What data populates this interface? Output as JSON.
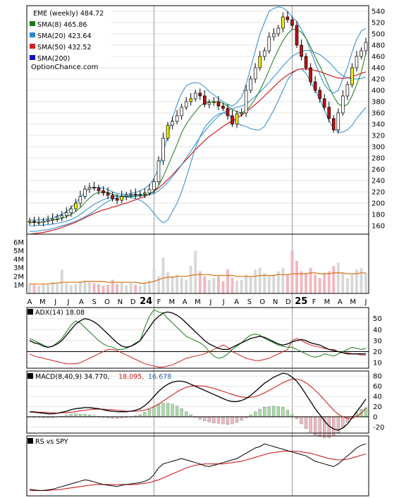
{
  "chart_data": {
    "type": "stock-chart",
    "price_panel": {
      "legend": [
        {
          "label": "EME (weekly) 484.72",
          "color": "#ffffff",
          "swatch": false
        },
        {
          "label": "SMA(8) 465.86",
          "color": "#1a7a1a",
          "swatch": true
        },
        {
          "label": "SMA(20) 423.64",
          "color": "#2a8ad0",
          "swatch": true
        },
        {
          "label": "SMA(50) 432.52",
          "color": "#d02020",
          "swatch": true
        },
        {
          "label": "SMA(200)",
          "color": "#1010c0",
          "swatch": true
        }
      ],
      "watermark": "OptionChance.com",
      "y_ticks": [
        160,
        180,
        200,
        220,
        240,
        260,
        280,
        300,
        320,
        340,
        360,
        380,
        400,
        420,
        440,
        460,
        480,
        500,
        520,
        540
      ],
      "ylim": [
        145,
        550
      ],
      "close": [
        168,
        166,
        166,
        168,
        170,
        172,
        175,
        178,
        183,
        190,
        200,
        212,
        225,
        228,
        227,
        222,
        218,
        214,
        208,
        205,
        212,
        214,
        216,
        215,
        216,
        218,
        224,
        238,
        275,
        315,
        338,
        345,
        355,
        370,
        380,
        385,
        395,
        390,
        375,
        378,
        380,
        372,
        368,
        355,
        340,
        358,
        360,
        400,
        420,
        440,
        460,
        470,
        495,
        500,
        510,
        530,
        525,
        515,
        480,
        460,
        440,
        415,
        400,
        385,
        370,
        350,
        330,
        360,
        390,
        410,
        440,
        460,
        470,
        485
      ],
      "sma8": [
        165,
        166,
        166,
        167,
        168,
        170,
        171,
        173,
        176,
        180,
        185,
        192,
        201,
        209,
        216,
        219,
        220,
        219,
        216,
        213,
        212,
        212,
        212,
        212,
        213,
        214,
        216,
        220,
        231,
        247,
        266,
        285,
        304,
        325,
        340,
        352,
        362,
        372,
        378,
        380,
        380,
        380,
        377,
        372,
        366,
        362,
        360,
        364,
        373,
        385,
        400,
        417,
        436,
        455,
        472,
        488,
        500,
        508,
        508,
        503,
        492,
        477,
        459,
        443,
        425,
        406,
        389,
        376,
        371,
        375,
        390,
        410,
        432,
        465.86
      ],
      "sma20": [
        160,
        160,
        161,
        161,
        162,
        163,
        164,
        166,
        168,
        171,
        175,
        180,
        186,
        192,
        198,
        202,
        206,
        209,
        211,
        212,
        213,
        213,
        213,
        214,
        214,
        215,
        215,
        217,
        222,
        229,
        237,
        247,
        257,
        268,
        280,
        292,
        305,
        317,
        327,
        337,
        346,
        354,
        360,
        364,
        367,
        370,
        372,
        376,
        382,
        389,
        397,
        405,
        414,
        424,
        433,
        443,
        452,
        460,
        465,
        469,
        471,
        470,
        467,
        463,
        457,
        450,
        441,
        432,
        426,
        422,
        420,
        420,
        421,
        423.64
      ],
      "sma50": [
        145,
        146,
        147,
        148,
        150,
        152,
        154,
        157,
        160,
        163,
        166,
        170,
        174,
        178,
        182,
        185,
        188,
        190,
        193,
        195,
        198,
        200,
        203,
        206,
        209,
        212,
        216,
        221,
        227,
        234,
        242,
        250,
        259,
        268,
        277,
        286,
        295,
        303,
        311,
        318,
        324,
        330,
        336,
        341,
        346,
        351,
        356,
        362,
        368,
        375,
        382,
        390,
        398,
        406,
        414,
        421,
        427,
        432,
        436,
        438,
        438,
        437,
        435,
        433,
        430,
        427,
        424,
        422,
        421,
        422,
        424,
        427,
        430,
        432.52
      ],
      "bb_upper": [
        170,
        170,
        170,
        171,
        172,
        174,
        177,
        180,
        185,
        192,
        200,
        210,
        220,
        226,
        228,
        228,
        226,
        224,
        220,
        217,
        216,
        216,
        217,
        219,
        222,
        226,
        232,
        244,
        262,
        290,
        320,
        350,
        375,
        395,
        408,
        412,
        414,
        412,
        406,
        398,
        392,
        385,
        380,
        375,
        372,
        378,
        388,
        410,
        440,
        470,
        500,
        520,
        540,
        545,
        548,
        546,
        540,
        530,
        522,
        508,
        492,
        470,
        448,
        428,
        410,
        400,
        395,
        400,
        420,
        440,
        468,
        490,
        505,
        510
      ],
      "bb_lower": [
        150,
        150,
        151,
        152,
        153,
        155,
        157,
        160,
        162,
        165,
        168,
        172,
        176,
        180,
        186,
        192,
        198,
        203,
        207,
        209,
        211,
        211,
        210,
        208,
        205,
        200,
        192,
        182,
        172,
        165,
        170,
        185,
        200,
        220,
        245,
        272,
        298,
        318,
        334,
        344,
        352,
        358,
        360,
        358,
        350,
        342,
        338,
        336,
        332,
        330,
        330,
        336,
        350,
        365,
        382,
        400,
        418,
        430,
        436,
        438,
        430,
        416,
        400,
        384,
        365,
        346,
        332,
        326,
        326,
        330,
        338,
        350,
        360,
        370
      ],
      "candles_note": "weekly OHLC candles"
    },
    "volume_panel": {
      "y_ticks": [
        "1M",
        "2M",
        "3M",
        "4M",
        "5M",
        "6M"
      ],
      "values": [
        1.2,
        1.0,
        0.9,
        1.1,
        1.0,
        1.3,
        1.1,
        2.8,
        1.2,
        1.0,
        1.1,
        1.4,
        1.5,
        1.3,
        1.2,
        1.1,
        0.9,
        1.0,
        1.6,
        1.1,
        1.3,
        1.0,
        1.2,
        1.0,
        0.9,
        1.2,
        1.5,
        3.0,
        2.0,
        4.2,
        2.5,
        2.0,
        2.2,
        1.8,
        1.6,
        3.2,
        5.0,
        2.6,
        2.0,
        1.6,
        1.8,
        2.0,
        1.4,
        2.8,
        1.8,
        1.5,
        1.6,
        2.2,
        2.0,
        2.8,
        3.0,
        2.4,
        2.0,
        2.2,
        2.6,
        3.0,
        2.2,
        5.0,
        3.8,
        2.6,
        2.4,
        3.0,
        2.2,
        1.8,
        2.4,
        2.6,
        3.2,
        3.6,
        2.4,
        1.8,
        2.2,
        2.8,
        3.0,
        2.4
      ],
      "avg": [
        1.1,
        1.1,
        1.1,
        1.1,
        1.1,
        1.2,
        1.2,
        1.3,
        1.3,
        1.3,
        1.3,
        1.3,
        1.4,
        1.4,
        1.4,
        1.4,
        1.4,
        1.3,
        1.3,
        1.3,
        1.3,
        1.3,
        1.3,
        1.3,
        1.2,
        1.2,
        1.3,
        1.4,
        1.6,
        1.8,
        1.9,
        1.9,
        2.0,
        2.0,
        2.0,
        2.1,
        2.2,
        2.2,
        2.2,
        2.2,
        2.1,
        2.1,
        2.1,
        2.1,
        2.1,
        2.0,
        2.0,
        2.0,
        2.0,
        2.0,
        2.1,
        2.1,
        2.1,
        2.1,
        2.2,
        2.2,
        2.2,
        2.3,
        2.3,
        2.3,
        2.3,
        2.4,
        2.4,
        2.3,
        2.3,
        2.3,
        2.4,
        2.4,
        2.4,
        2.3,
        2.3,
        2.3,
        2.4,
        2.4
      ]
    },
    "x_axis": {
      "labels": [
        "A",
        "M",
        "J",
        "J",
        "A",
        "S",
        "O",
        "N",
        "D",
        "24",
        "F",
        "M",
        "A",
        "M",
        "J",
        "J",
        "A",
        "S",
        "O",
        "N",
        "D",
        "25",
        "F",
        "M",
        "A",
        "M",
        "J"
      ]
    },
    "adx_panel": {
      "title": "ADX(14) 18.08",
      "y_ticks": [
        10,
        20,
        30,
        40,
        50
      ],
      "ylim": [
        5,
        60
      ],
      "adx": [
        30,
        28,
        27,
        25,
        24,
        25,
        27,
        30,
        35,
        40,
        45,
        48,
        50,
        49,
        47,
        44,
        40,
        36,
        32,
        28,
        25,
        24,
        25,
        27,
        30,
        36,
        42,
        48,
        52,
        55,
        56,
        55,
        53,
        50,
        46,
        42,
        38,
        34,
        30,
        27,
        25,
        23,
        22,
        22,
        24,
        26,
        28,
        30,
        32,
        33,
        34,
        33,
        31,
        29,
        27,
        26,
        27,
        29,
        30,
        31,
        30,
        28,
        27,
        26,
        24,
        22,
        21,
        20,
        19,
        18,
        18,
        18,
        18,
        18.08
      ],
      "plus_di": [
        32,
        30,
        28,
        26,
        24,
        25,
        28,
        32,
        38,
        44,
        48,
        46,
        42,
        38,
        34,
        30,
        27,
        25,
        24,
        22,
        22,
        23,
        25,
        28,
        30,
        42,
        52,
        58,
        56,
        55,
        50,
        46,
        42,
        38,
        34,
        32,
        30,
        28,
        25,
        20,
        16,
        14,
        15,
        18,
        22,
        25,
        28,
        32,
        35,
        36,
        35,
        32,
        30,
        28,
        26,
        25,
        24,
        24,
        22,
        20,
        18,
        16,
        15,
        16,
        18,
        17,
        16,
        18,
        20,
        22,
        24,
        23,
        22,
        23
      ],
      "minus_di": [
        18,
        16,
        15,
        14,
        13,
        12,
        11,
        10,
        9,
        9,
        9,
        10,
        12,
        14,
        16,
        18,
        20,
        22,
        22,
        21,
        19,
        17,
        15,
        13,
        11,
        9,
        8,
        7,
        6,
        6,
        7,
        8,
        10,
        12,
        14,
        15,
        16,
        17,
        18,
        20,
        22,
        24,
        26,
        24,
        20,
        18,
        16,
        14,
        13,
        12,
        12,
        13,
        14,
        16,
        18,
        20,
        22,
        30,
        32,
        30,
        28,
        26,
        25,
        24,
        23,
        22,
        22,
        20,
        19,
        19,
        18,
        18,
        17,
        17
      ]
    },
    "macd_panel": {
      "title": "MACD(8,40,9) 34.770,",
      "macd_value": "18.095,",
      "signal_value": "16.678",
      "y_ticks": [
        -20,
        0,
        20,
        40,
        60,
        80
      ],
      "ylim": [
        -32,
        90
      ],
      "macd": [
        10,
        9,
        8,
        7,
        6,
        6,
        7,
        9,
        11,
        14,
        16,
        17,
        18,
        18,
        17,
        16,
        14,
        12,
        11,
        10,
        10,
        10,
        11,
        13,
        16,
        22,
        30,
        40,
        50,
        58,
        64,
        68,
        70,
        70,
        68,
        64,
        60,
        56,
        52,
        48,
        44,
        40,
        36,
        32,
        30,
        30,
        32,
        36,
        42,
        50,
        58,
        66,
        72,
        78,
        82,
        86,
        84,
        78,
        70,
        58,
        44,
        30,
        16,
        4,
        -8,
        -18,
        -24,
        -26,
        -22,
        -14,
        -2,
        10,
        22,
        34.77
      ],
      "signal": [
        10,
        10,
        9,
        9,
        8,
        8,
        7,
        8,
        8,
        9,
        10,
        12,
        13,
        14,
        15,
        15,
        15,
        14,
        14,
        13,
        12,
        11,
        11,
        11,
        12,
        13,
        16,
        20,
        25,
        31,
        37,
        43,
        49,
        54,
        58,
        60,
        61,
        61,
        60,
        58,
        56,
        53,
        50,
        47,
        44,
        41,
        39,
        38,
        38,
        40,
        43,
        47,
        52,
        57,
        62,
        67,
        71,
        74,
        74,
        72,
        67,
        60,
        52,
        43,
        33,
        23,
        13,
        5,
        0,
        -3,
        -3,
        1,
        7,
        16.68
      ],
      "histogram": [
        0,
        -1,
        -1,
        -2,
        -2,
        -2,
        0,
        1,
        3,
        5,
        6,
        5,
        5,
        4,
        2,
        1,
        -1,
        -2,
        -3,
        -3,
        -2,
        -1,
        0,
        2,
        4,
        9,
        14,
        20,
        25,
        27,
        27,
        25,
        21,
        16,
        10,
        4,
        -1,
        -5,
        -8,
        -10,
        -12,
        -13,
        -14,
        -15,
        -14,
        -11,
        -7,
        -2,
        4,
        10,
        15,
        19,
        20,
        21,
        20,
        19,
        13,
        4,
        -4,
        -14,
        -23,
        -30,
        -36,
        -39,
        -41,
        -41,
        -37,
        -31,
        -22,
        -11,
        1,
        9,
        15,
        18.1
      ]
    },
    "rs_panel": {
      "title": "RS vs SPY",
      "rs": [
        20,
        19,
        18,
        18,
        19,
        20,
        22,
        24,
        26,
        28,
        30,
        32,
        34,
        33,
        31,
        29,
        27,
        26,
        25,
        24,
        26,
        27,
        28,
        29,
        30,
        32,
        35,
        42,
        52,
        58,
        60,
        62,
        64,
        66,
        64,
        62,
        60,
        58,
        55,
        54,
        56,
        58,
        60,
        62,
        64,
        66,
        70,
        74,
        78,
        82,
        84,
        88,
        86,
        84,
        82,
        80,
        78,
        76,
        74,
        72,
        70,
        66,
        62,
        60,
        58,
        56,
        54,
        58,
        64,
        70,
        76,
        82,
        86,
        88
      ],
      "rs_ma": [
        18,
        18,
        18,
        18,
        18,
        19,
        19,
        20,
        21,
        22,
        23,
        24,
        25,
        26,
        27,
        27,
        27,
        27,
        27,
        27,
        27,
        27,
        27,
        27,
        28,
        29,
        30,
        32,
        34,
        37,
        40,
        43,
        46,
        49,
        52,
        54,
        56,
        57,
        58,
        58,
        58,
        58,
        58,
        59,
        60,
        61,
        62,
        64,
        66,
        68,
        70,
        72,
        74,
        75,
        76,
        77,
        77,
        77,
        77,
        76,
        75,
        74,
        72,
        70,
        68,
        66,
        65,
        64,
        64,
        65,
        67,
        69,
        71,
        73
      ]
    }
  }
}
